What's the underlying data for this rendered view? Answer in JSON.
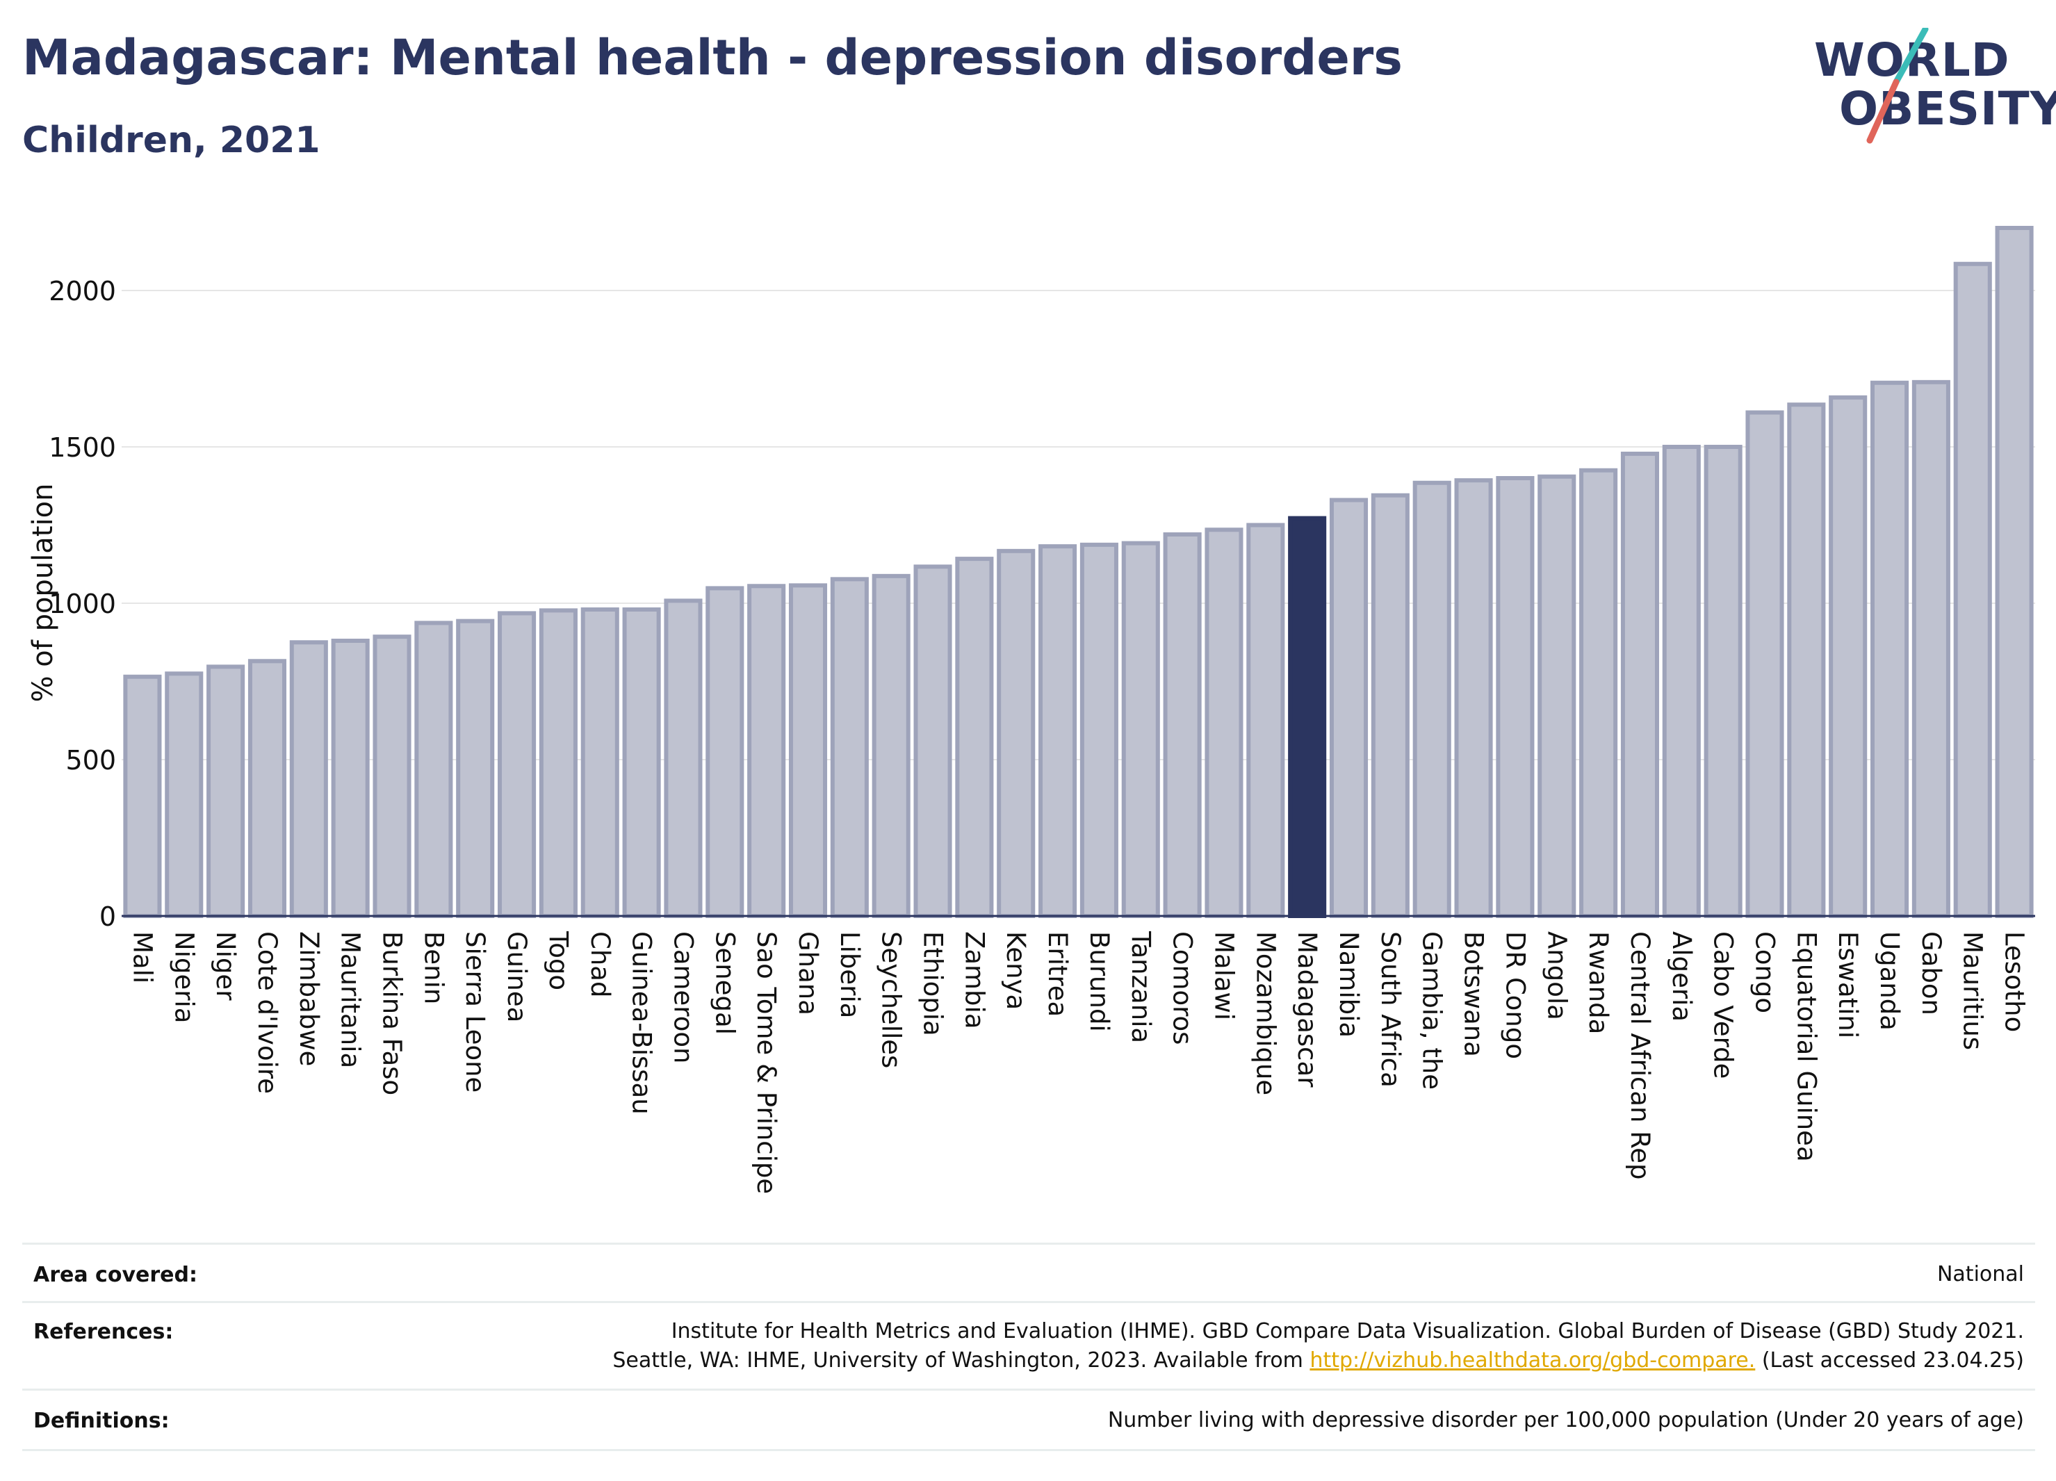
{
  "header": {
    "title": "Madagascar: Mental health - depression disorders",
    "subtitle": "Children, 2021"
  },
  "logo": {
    "line1": "WORLD",
    "line2": "OBESITY",
    "brand_color": "#2b3560",
    "accent_teal": "#3bbcb8",
    "accent_red": "#e0655a"
  },
  "colors": {
    "bar": "#bfc2d0",
    "bar_border": "#9ea3ba",
    "highlight": "#2b3560",
    "grid": "#e6e6e6",
    "axis": "#2b3560"
  },
  "chart_data": {
    "type": "bar",
    "title": "Madagascar: Mental health - depression disorders",
    "subtitle": "Children, 2021",
    "xlabel": "",
    "ylabel": "% of population",
    "ylim": [
      0,
      2200
    ],
    "yticks": [
      0,
      500,
      1000,
      1500,
      2000
    ],
    "grid": true,
    "highlight": "Madagascar",
    "categories": [
      "Mali",
      "Nigeria",
      "Niger",
      "Cote d'Ivoire",
      "Zimbabwe",
      "Mauritania",
      "Burkina Faso",
      "Benin",
      "Sierra Leone",
      "Guinea",
      "Togo",
      "Chad",
      "Guinea-Bissau",
      "Cameroon",
      "Senegal",
      "Sao Tome & Principe",
      "Ghana",
      "Liberia",
      "Seychelles",
      "Ethiopia",
      "Zambia",
      "Kenya",
      "Eritrea",
      "Burundi",
      "Tanzania",
      "Comoros",
      "Malawi",
      "Mozambique",
      "Madagascar",
      "Namibia",
      "South Africa",
      "Gambia, the",
      "Botswana",
      "DR Congo",
      "Angola",
      "Rwanda",
      "Central African Rep",
      "Algeria",
      "Cabo Verde",
      "Congo",
      "Equatorial Guinea",
      "Eswatini",
      "Uganda",
      "Gabon",
      "Mauritius",
      "Lesotho"
    ],
    "values": [
      765,
      775,
      797,
      815,
      875,
      880,
      893,
      937,
      943,
      968,
      977,
      980,
      980,
      1008,
      1048,
      1055,
      1057,
      1077,
      1087,
      1117,
      1142,
      1167,
      1182,
      1187,
      1192,
      1220,
      1235,
      1250,
      1272,
      1330,
      1345,
      1385,
      1393,
      1400,
      1405,
      1425,
      1478,
      1500,
      1500,
      1610,
      1635,
      1658,
      1705,
      1707,
      2085,
      2200
    ]
  },
  "footer": {
    "area_label": "Area covered:",
    "area_value": "National",
    "references_label": "References:",
    "references_line1": "Institute for Health Metrics and Evaluation (IHME). GBD Compare Data Visualization. Global Burden of Disease (GBD) Study 2021.",
    "references_line2_pre": "Seattle, WA: IHME, University of Washington, 2023. Available from ",
    "references_link": "http://vizhub.healthdata.org/gbd-compare.",
    "references_line2_post": " (Last accessed 23.04.25)",
    "definitions_label": "Definitions:",
    "definitions_value": "Number living with depressive disorder per 100,000 population (Under 20 years of age)"
  }
}
